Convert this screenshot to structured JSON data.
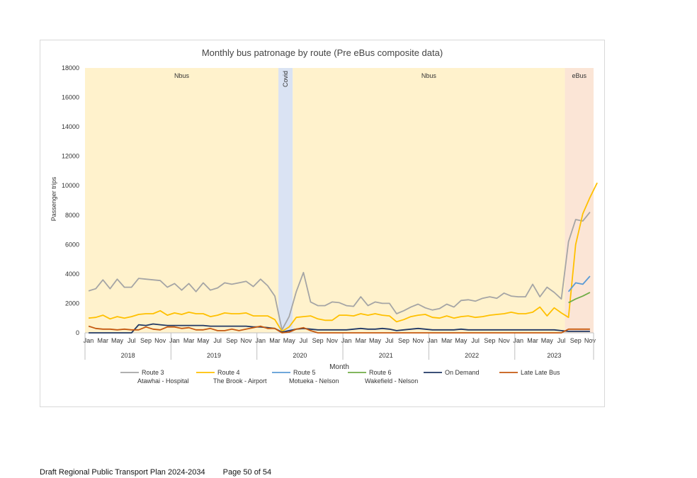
{
  "footer": {
    "document_title": "Draft Regional Public Transport Plan 2024-2034",
    "page_label": "Page 50 of 54"
  },
  "colors": {
    "nbus_band": "#fff2cc",
    "covid_band": "#dae3f3",
    "ebus_band": "#fbe5d6",
    "route3": "#a5a5a5",
    "route4": "#ffc000",
    "route5": "#5b9bd5",
    "route6": "#70ad47",
    "on_demand": "#203864",
    "late_late_bus": "#c55a11"
  },
  "chart_data": {
    "type": "line",
    "title": "Monthly bus patronage by route (Pre eBus composite data)",
    "xlabel": "Month",
    "ylabel": "Passenger trips",
    "ylim": [
      0,
      18000
    ],
    "yticks": [
      "0",
      "2000",
      "4000",
      "6000",
      "8000",
      "10000",
      "12000",
      "14000",
      "16000",
      "18000"
    ],
    "month_labels": [
      "Jan",
      "Mar",
      "May",
      "Jul",
      "Sep",
      "Nov"
    ],
    "years": [
      "2018",
      "2019",
      "2020",
      "2021",
      "2022",
      "2023"
    ],
    "last_year_labels": [
      "Jan",
      "Mar",
      "May",
      "Jul",
      "Sep",
      "Nov"
    ],
    "bands": [
      {
        "label": "Nbus",
        "start": "2018-01",
        "end": "2020-03",
        "vertical": false
      },
      {
        "label": "Covid",
        "start": "2020-04",
        "end": "2020-05",
        "vertical": true
      },
      {
        "label": "Nbus",
        "start": "2020-06",
        "end": "2023-07",
        "vertical": false
      },
      {
        "label": "eBus",
        "start": "2023-08",
        "end": "2023-11",
        "vertical": false
      }
    ],
    "x_start": "2018-01",
    "x_end": "2023-11",
    "series": [
      {
        "name": "Route 3",
        "subtitle": "Atawhai - Hospital",
        "color_key": "route3",
        "start": "2018-01",
        "values": [
          2850,
          3000,
          3600,
          3000,
          3650,
          3100,
          3100,
          3700,
          3650,
          3600,
          3550,
          3100,
          3350,
          2900,
          3350,
          2800,
          3400,
          2900,
          3050,
          3400,
          3300,
          3400,
          3500,
          3150,
          3650,
          3200,
          2500,
          200,
          1100,
          2800,
          4100,
          2100,
          1850,
          1850,
          2100,
          2050,
          1850,
          1800,
          2450,
          1850,
          2100,
          2000,
          2000,
          1300,
          1500,
          1750,
          1950,
          1700,
          1550,
          1650,
          1950,
          1750,
          2200,
          2250,
          2150,
          2350,
          2450,
          2350,
          2700,
          2500,
          2450,
          2450,
          3300,
          2450,
          3100,
          2750,
          2300,
          6200,
          7700,
          7600,
          8200
        ]
      },
      {
        "name": "Route 4",
        "subtitle": "The Brook - Airport",
        "color_key": "route4",
        "start": "2018-01",
        "values": [
          1000,
          1050,
          1200,
          950,
          1100,
          1000,
          1100,
          1250,
          1300,
          1300,
          1500,
          1200,
          1350,
          1250,
          1400,
          1300,
          1300,
          1100,
          1200,
          1350,
          1300,
          1300,
          1350,
          1150,
          1150,
          1150,
          900,
          100,
          400,
          1050,
          1100,
          1150,
          950,
          850,
          850,
          1200,
          1200,
          1150,
          1300,
          1200,
          1300,
          1200,
          1150,
          750,
          900,
          1100,
          1200,
          1250,
          1050,
          1000,
          1150,
          1000,
          1100,
          1150,
          1050,
          1100,
          1200,
          1250,
          1300,
          1400,
          1300,
          1300,
          1400,
          1750,
          1150,
          1700,
          1350,
          1050,
          6000,
          8100,
          9200,
          10200
        ]
      },
      {
        "name": "Route 5",
        "subtitle": "Motueka - Nelson",
        "color_key": "route5",
        "start": "2023-08",
        "values": [
          2800,
          3400,
          3300,
          3850
        ]
      },
      {
        "name": "Route 6",
        "subtitle": "Wakefield - Nelson",
        "color_key": "route6",
        "start": "2023-08",
        "values": [
          2050,
          2300,
          2500,
          2750
        ]
      },
      {
        "name": "On Demand",
        "subtitle": "",
        "color_key": "on_demand",
        "start": "2018-01",
        "values": [
          0,
          0,
          0,
          0,
          0,
          0,
          0,
          550,
          500,
          600,
          550,
          500,
          500,
          500,
          500,
          500,
          500,
          450,
          450,
          450,
          450,
          450,
          450,
          400,
          400,
          350,
          300,
          50,
          150,
          250,
          300,
          250,
          200,
          200,
          200,
          200,
          200,
          250,
          300,
          250,
          250,
          300,
          250,
          150,
          200,
          250,
          300,
          250,
          200,
          200,
          200,
          200,
          250,
          200,
          200,
          200,
          200,
          200,
          200,
          200,
          200,
          200,
          200,
          200,
          200,
          200,
          150,
          100,
          100,
          100,
          100
        ]
      },
      {
        "name": "Late Late Bus",
        "subtitle": "",
        "color_key": "late_late_bus",
        "start": "2018-01",
        "values": [
          450,
          300,
          250,
          250,
          200,
          250,
          200,
          200,
          400,
          250,
          200,
          400,
          400,
          300,
          350,
          200,
          200,
          300,
          150,
          150,
          250,
          150,
          250,
          350,
          450,
          300,
          300,
          0,
          50,
          250,
          350,
          150,
          0,
          0,
          0,
          0,
          0,
          0,
          0,
          0,
          0,
          0,
          0,
          0,
          0,
          0,
          0,
          0,
          0,
          0,
          0,
          0,
          0,
          0,
          0,
          0,
          0,
          0,
          0,
          0,
          0,
          0,
          0,
          0,
          0,
          0,
          0,
          250,
          250,
          250,
          250
        ]
      }
    ]
  }
}
